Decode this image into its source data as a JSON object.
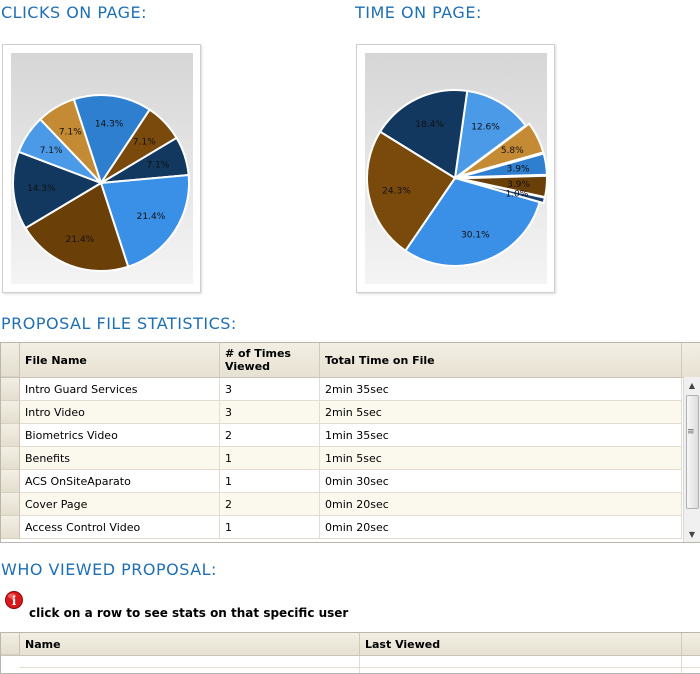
{
  "clicks": {
    "heading": "CLICKS ON PAGE:",
    "chart_data": {
      "type": "pie",
      "title": "",
      "labels": [
        "14.3%",
        "7.1%",
        "7.1%",
        "21.4%",
        "21.4%",
        "14.3%",
        "7.1%",
        "7.1%"
      ],
      "values": [
        14.3,
        7.1,
        7.1,
        21.4,
        21.4,
        14.3,
        7.1,
        7.1
      ],
      "colors": [
        "#2f7fd0",
        "#7a4a0c",
        "#12385f",
        "#3a8fe6",
        "#6b3f08",
        "#12385f",
        "#4a9ae8",
        "#c48a34"
      ]
    }
  },
  "time": {
    "heading": "TIME ON PAGE:",
    "chart_data": {
      "type": "pie",
      "title": "",
      "labels": [
        "12.6%",
        "5.8%",
        "3.9%",
        "3.9%",
        "1.0%",
        "30.1%",
        "24.3%",
        "18.4%"
      ],
      "values": [
        12.6,
        5.8,
        3.9,
        3.9,
        1.0,
        30.1,
        24.3,
        18.4
      ],
      "colors": [
        "#4a9ae8",
        "#c48a34",
        "#2f7fd0",
        "#6b3f08",
        "#1b3f6e",
        "#3a8fe6",
        "#7a4a0c",
        "#12385f"
      ]
    }
  },
  "file_stats": {
    "heading": "PROPOSAL FILE STATISTICS:",
    "columns": [
      "File Name",
      "# of Times Viewed",
      "Total Time on File"
    ],
    "rows": [
      [
        "Intro Guard Services",
        "3",
        "2min 35sec"
      ],
      [
        "Intro Video",
        "3",
        "2min 5sec"
      ],
      [
        "Biometrics Video",
        "2",
        "1min 35sec"
      ],
      [
        "Benefits",
        "1",
        "1min 5sec"
      ],
      [
        "ACS OnSiteAparato",
        "1",
        "0min 30sec"
      ],
      [
        "Cover Page",
        "2",
        "0min 20sec"
      ],
      [
        "Access Control Video",
        "1",
        "0min 20sec"
      ]
    ]
  },
  "viewers": {
    "heading": "WHO VIEWED PROPOSAL:",
    "hint": "click on a row to see stats on that specific user",
    "columns": [
      "Name",
      "Last Viewed"
    ]
  }
}
